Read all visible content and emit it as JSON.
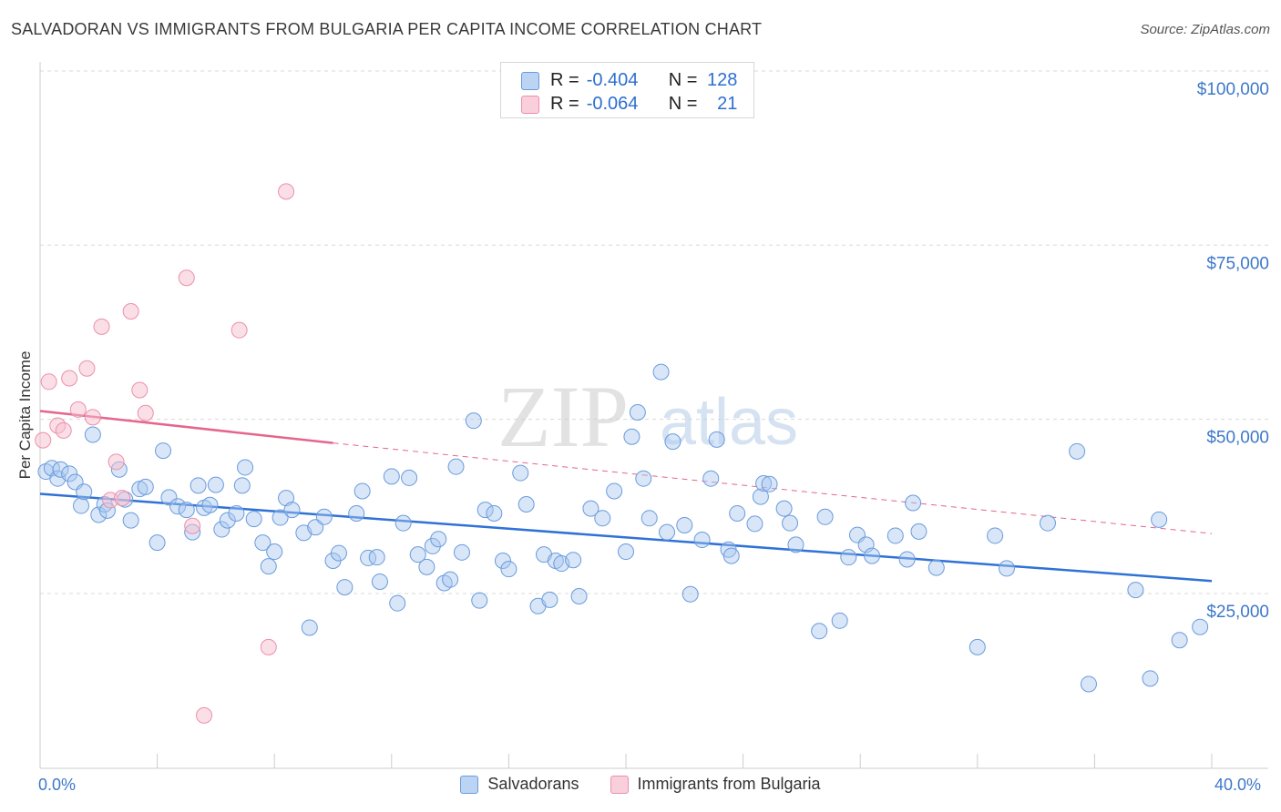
{
  "title": "SALVADORAN VS IMMIGRANTS FROM BULGARIA PER CAPITA INCOME CORRELATION CHART",
  "source": "Source: ZipAtlas.com",
  "watermark": {
    "zip": "ZIP",
    "atlas": "atlas"
  },
  "colors": {
    "blue_fill": "#a9c8f0",
    "blue_stroke": "#6a9bdc",
    "blue_line": "#2f72d6",
    "pink_fill": "#f7bfd0",
    "pink_stroke": "#ec8fab",
    "pink_line": "#e5658c",
    "axis_text": "#3d78c9",
    "grid": "#d9d9d9"
  },
  "legend": {
    "rows": [
      {
        "r_label": "R =",
        "r_value": "-0.404",
        "n_label": "N =",
        "n_value": "128"
      },
      {
        "r_label": "R =",
        "r_value": "-0.064",
        "n_label": "N =",
        "n_value": "21"
      }
    ]
  },
  "bottom_legend": {
    "series1": "Salvadorans",
    "series2": "Immigrants from Bulgaria"
  },
  "x_axis": {
    "min_label": "0.0%",
    "max_label": "40.0%"
  },
  "chart_data": {
    "type": "scatter",
    "xlabel": "",
    "ylabel": "Per Capita Income",
    "xlim": [
      0,
      40
    ],
    "ylim": [
      0,
      105000
    ],
    "ytick_values": [
      25000,
      50000,
      75000,
      100000
    ],
    "ytick_labels": [
      "$25,000",
      "$50,000",
      "$75,000",
      "$100,000"
    ],
    "series": [
      {
        "name": "Salvadorans",
        "r": -0.404,
        "n": 128,
        "trend": {
          "x": [
            0,
            40
          ],
          "y": [
            39300,
            26800
          ]
        },
        "points": [
          [
            0.2,
            42500
          ],
          [
            0.4,
            43000
          ],
          [
            0.6,
            41500
          ],
          [
            0.7,
            42800
          ],
          [
            1.0,
            42200
          ],
          [
            1.2,
            41000
          ],
          [
            1.4,
            37600
          ],
          [
            1.5,
            39600
          ],
          [
            1.8,
            47800
          ],
          [
            2.0,
            36300
          ],
          [
            2.2,
            37800
          ],
          [
            2.3,
            36900
          ],
          [
            2.7,
            42800
          ],
          [
            2.9,
            38500
          ],
          [
            3.1,
            35500
          ],
          [
            3.4,
            40000
          ],
          [
            3.6,
            40300
          ],
          [
            4.0,
            32300
          ],
          [
            4.2,
            45500
          ],
          [
            4.4,
            38800
          ],
          [
            4.7,
            37500
          ],
          [
            5.0,
            37000
          ],
          [
            5.2,
            33800
          ],
          [
            5.4,
            40500
          ],
          [
            5.6,
            37300
          ],
          [
            5.8,
            37700
          ],
          [
            6.0,
            40600
          ],
          [
            6.2,
            34200
          ],
          [
            6.4,
            35500
          ],
          [
            6.7,
            36500
          ],
          [
            6.9,
            40500
          ],
          [
            7.0,
            43100
          ],
          [
            7.3,
            35700
          ],
          [
            7.6,
            32300
          ],
          [
            7.8,
            28900
          ],
          [
            8.0,
            31000
          ],
          [
            8.2,
            35900
          ],
          [
            8.4,
            38700
          ],
          [
            8.6,
            37000
          ],
          [
            9.0,
            33700
          ],
          [
            9.2,
            20100
          ],
          [
            9.4,
            34500
          ],
          [
            9.7,
            36000
          ],
          [
            10.0,
            29700
          ],
          [
            10.2,
            30800
          ],
          [
            10.4,
            25900
          ],
          [
            10.8,
            36500
          ],
          [
            11.0,
            39700
          ],
          [
            11.2,
            30100
          ],
          [
            11.5,
            30200
          ],
          [
            11.6,
            26700
          ],
          [
            12.0,
            41800
          ],
          [
            12.2,
            23600
          ],
          [
            12.4,
            35100
          ],
          [
            12.6,
            41600
          ],
          [
            12.9,
            30600
          ],
          [
            13.2,
            28800
          ],
          [
            13.4,
            31800
          ],
          [
            13.6,
            32800
          ],
          [
            13.8,
            26500
          ],
          [
            14.0,
            27000
          ],
          [
            14.2,
            43200
          ],
          [
            14.4,
            30900
          ],
          [
            14.8,
            49800
          ],
          [
            15.0,
            24000
          ],
          [
            15.2,
            37000
          ],
          [
            15.5,
            36500
          ],
          [
            15.8,
            29700
          ],
          [
            16.0,
            28500
          ],
          [
            16.4,
            42300
          ],
          [
            16.6,
            37800
          ],
          [
            17.0,
            23200
          ],
          [
            17.2,
            30600
          ],
          [
            17.4,
            24100
          ],
          [
            17.6,
            29700
          ],
          [
            17.8,
            29300
          ],
          [
            18.2,
            29800
          ],
          [
            18.4,
            24600
          ],
          [
            18.8,
            37200
          ],
          [
            19.2,
            35800
          ],
          [
            19.6,
            39700
          ],
          [
            20.0,
            31000
          ],
          [
            20.2,
            47500
          ],
          [
            20.4,
            51000
          ],
          [
            20.6,
            41500
          ],
          [
            20.8,
            35800
          ],
          [
            21.2,
            56800
          ],
          [
            21.4,
            33800
          ],
          [
            21.6,
            46800
          ],
          [
            22.0,
            34800
          ],
          [
            22.2,
            24900
          ],
          [
            22.6,
            32700
          ],
          [
            22.9,
            41500
          ],
          [
            23.1,
            47100
          ],
          [
            23.5,
            31300
          ],
          [
            23.6,
            30400
          ],
          [
            23.8,
            36500
          ],
          [
            24.4,
            35000
          ],
          [
            24.6,
            38900
          ],
          [
            24.7,
            40800
          ],
          [
            24.9,
            40700
          ],
          [
            25.4,
            37200
          ],
          [
            25.6,
            35100
          ],
          [
            25.8,
            32000
          ],
          [
            26.6,
            19600
          ],
          [
            26.8,
            36000
          ],
          [
            27.3,
            21100
          ],
          [
            27.6,
            30200
          ],
          [
            27.9,
            33400
          ],
          [
            28.2,
            32000
          ],
          [
            28.4,
            30400
          ],
          [
            29.2,
            33300
          ],
          [
            29.6,
            29900
          ],
          [
            29.8,
            38000
          ],
          [
            30.0,
            33900
          ],
          [
            30.6,
            28700
          ],
          [
            32.0,
            17300
          ],
          [
            32.6,
            33300
          ],
          [
            33.0,
            28600
          ],
          [
            34.4,
            35100
          ],
          [
            35.4,
            45400
          ],
          [
            35.8,
            12000
          ],
          [
            37.4,
            25500
          ],
          [
            37.9,
            12800
          ],
          [
            38.2,
            35600
          ],
          [
            38.9,
            18300
          ],
          [
            39.6,
            20200
          ]
        ]
      },
      {
        "name": "Immigrants from Bulgaria",
        "r": -0.064,
        "n": 21,
        "trend": {
          "x": [
            0,
            10
          ],
          "y": [
            51200,
            46600
          ]
        },
        "trend_dashed": {
          "x": [
            10,
            40
          ],
          "y": [
            46600,
            33600
          ]
        },
        "points": [
          [
            0.1,
            47000
          ],
          [
            0.3,
            55400
          ],
          [
            0.6,
            49100
          ],
          [
            0.8,
            48400
          ],
          [
            1.0,
            55900
          ],
          [
            1.3,
            51400
          ],
          [
            1.6,
            57300
          ],
          [
            1.8,
            50300
          ],
          [
            2.1,
            63300
          ],
          [
            2.4,
            38400
          ],
          [
            2.6,
            43900
          ],
          [
            2.8,
            38700
          ],
          [
            3.1,
            65500
          ],
          [
            3.4,
            54200
          ],
          [
            3.6,
            50900
          ],
          [
            5.0,
            70300
          ],
          [
            5.2,
            34700
          ],
          [
            5.6,
            7500
          ],
          [
            6.8,
            62800
          ],
          [
            7.8,
            17300
          ],
          [
            8.4,
            82700
          ]
        ]
      }
    ]
  }
}
